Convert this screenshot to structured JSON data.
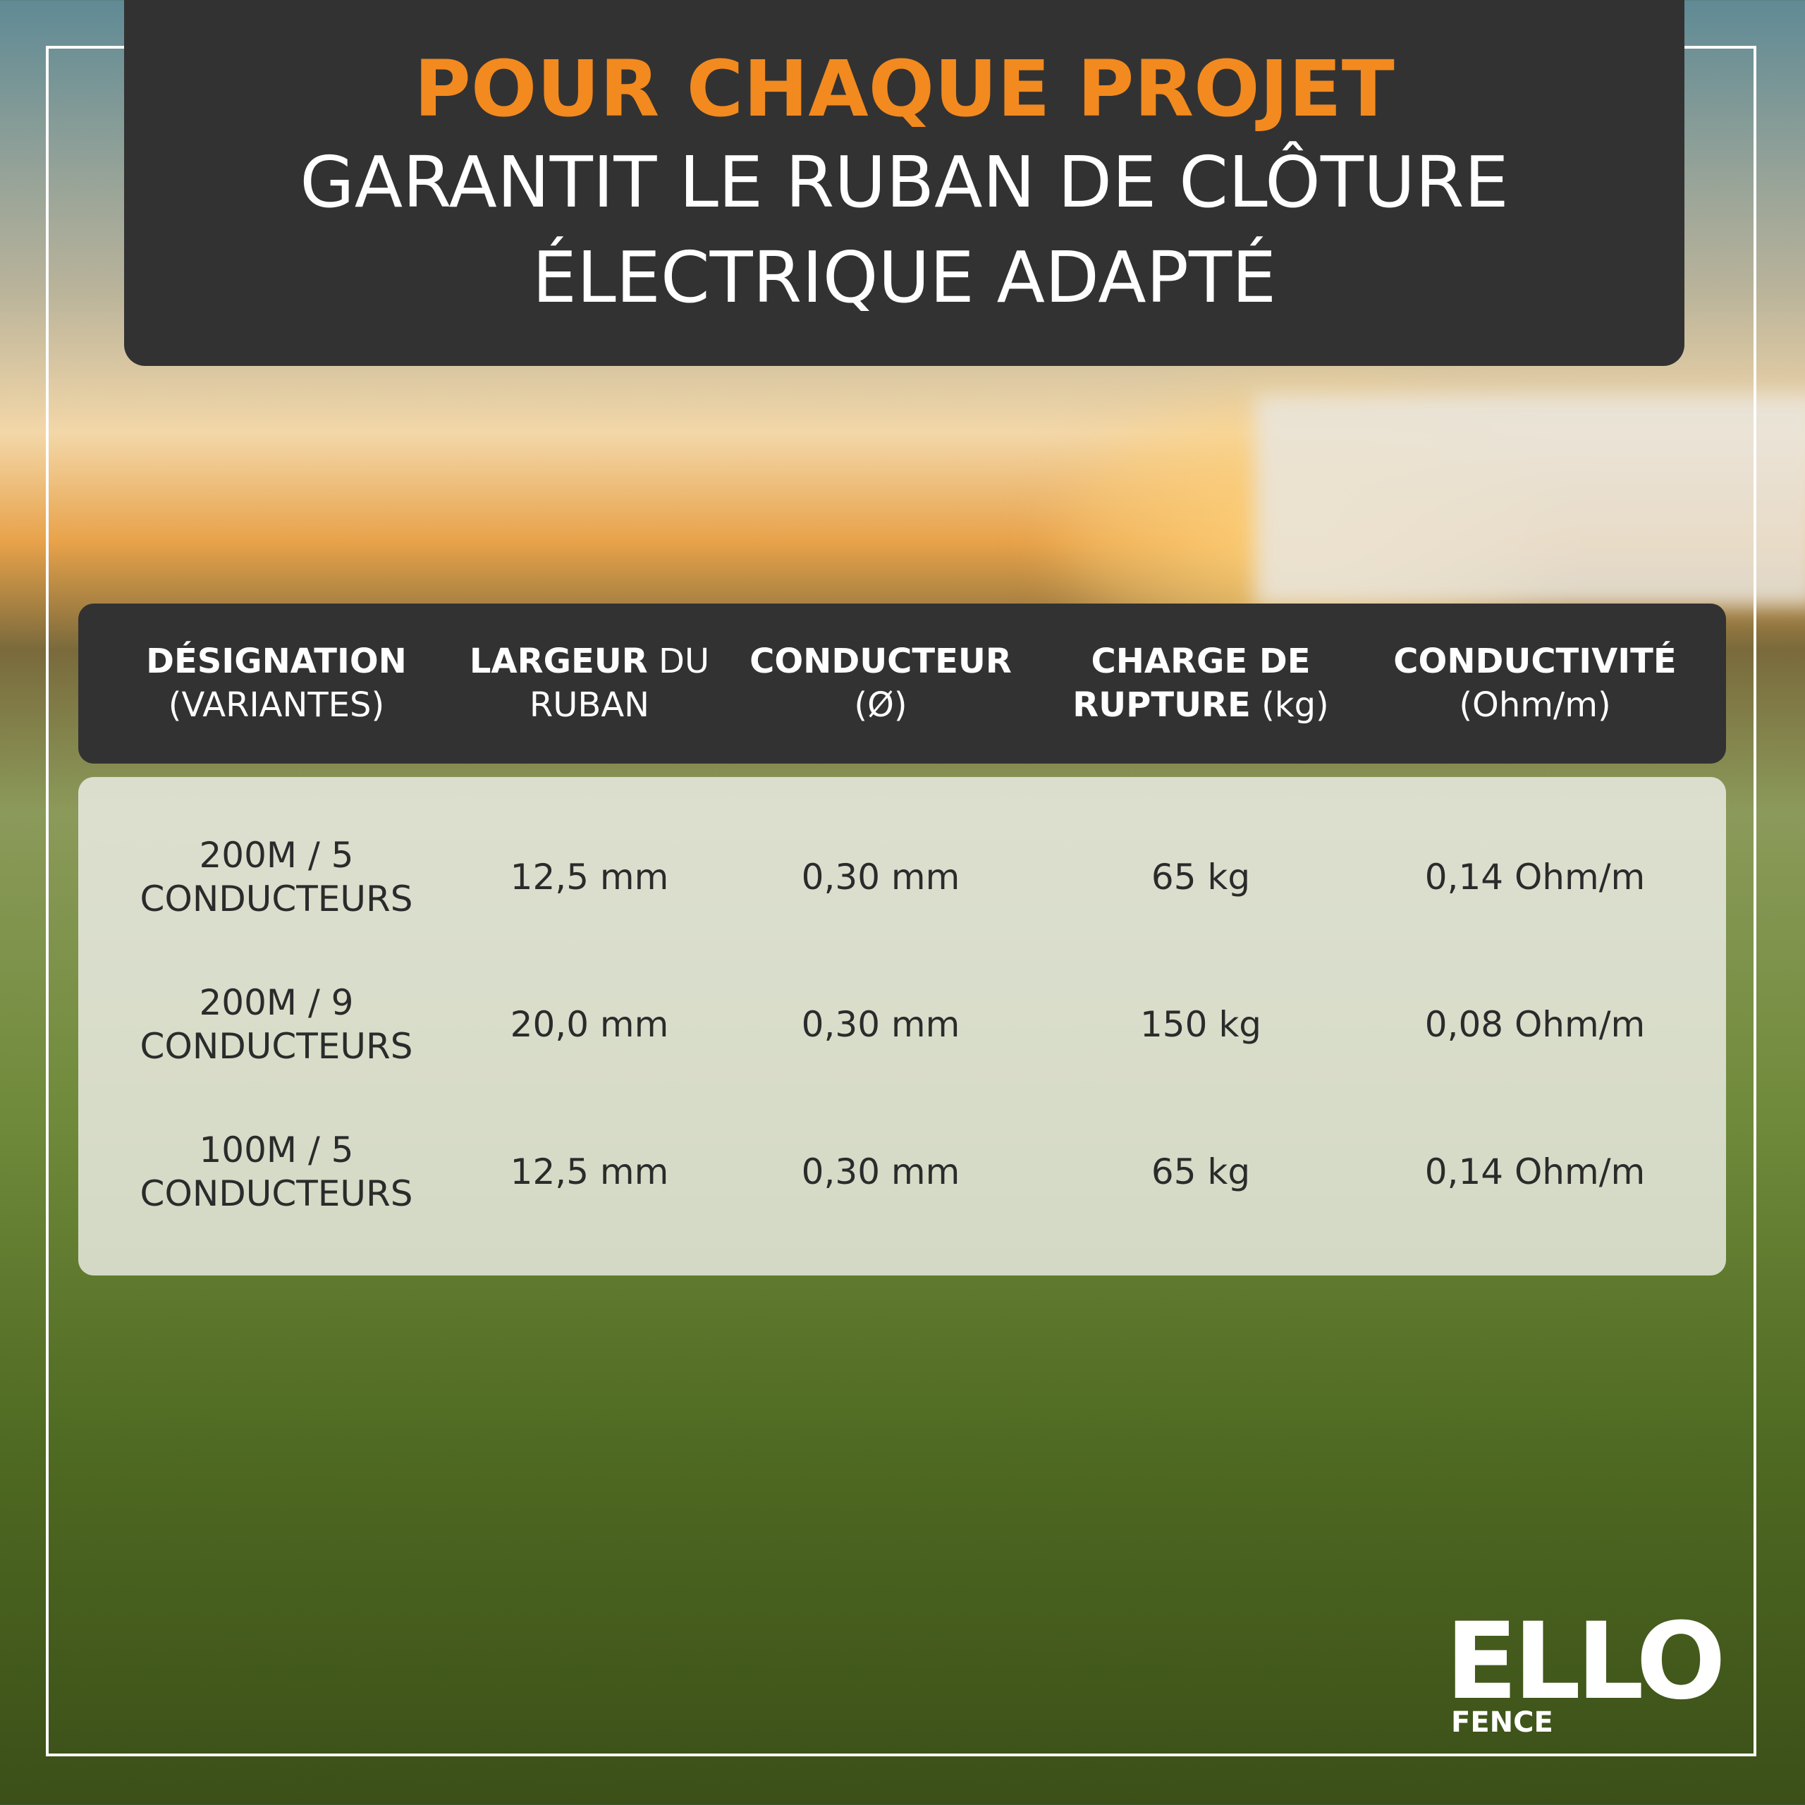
{
  "header": {
    "title": "POUR CHAQUE PROJET",
    "subtitle_lines": [
      "GARANTIT LE RUBAN DE CLÔTURE",
      "ÉLECTRIQUE ADAPTÉ"
    ]
  },
  "table": {
    "columns": [
      {
        "bold": "DÉSIGNATION",
        "normal": "(VARIANTES)"
      },
      {
        "bold": "LARGEUR",
        "normal": "DU RUBAN"
      },
      {
        "bold": "CONDUCTEUR",
        "normal": "(Ø)"
      },
      {
        "bold": "CHARGE DE RUPTURE",
        "normal": "(kg)"
      },
      {
        "bold": "CONDUCTIVITÉ",
        "normal": "(Ohm/m)"
      }
    ],
    "rows": [
      [
        [
          "200M / 5",
          "CONDUCTEURS"
        ],
        "12,5 mm",
        "0,30 mm",
        "65 kg",
        "0,14 Ohm/m"
      ],
      [
        [
          "200M / 9",
          "CONDUCTEURS"
        ],
        "20,0 mm",
        "0,30 mm",
        "150 kg",
        "0,08 Ohm/m"
      ],
      [
        [
          "100M / 5",
          "CONDUCTEURS"
        ],
        "12,5 mm",
        "0,30 mm",
        "65 kg",
        "0,14 Ohm/m"
      ]
    ]
  },
  "logo": {
    "brand": "ELLO",
    "tagline": "FENCE"
  }
}
